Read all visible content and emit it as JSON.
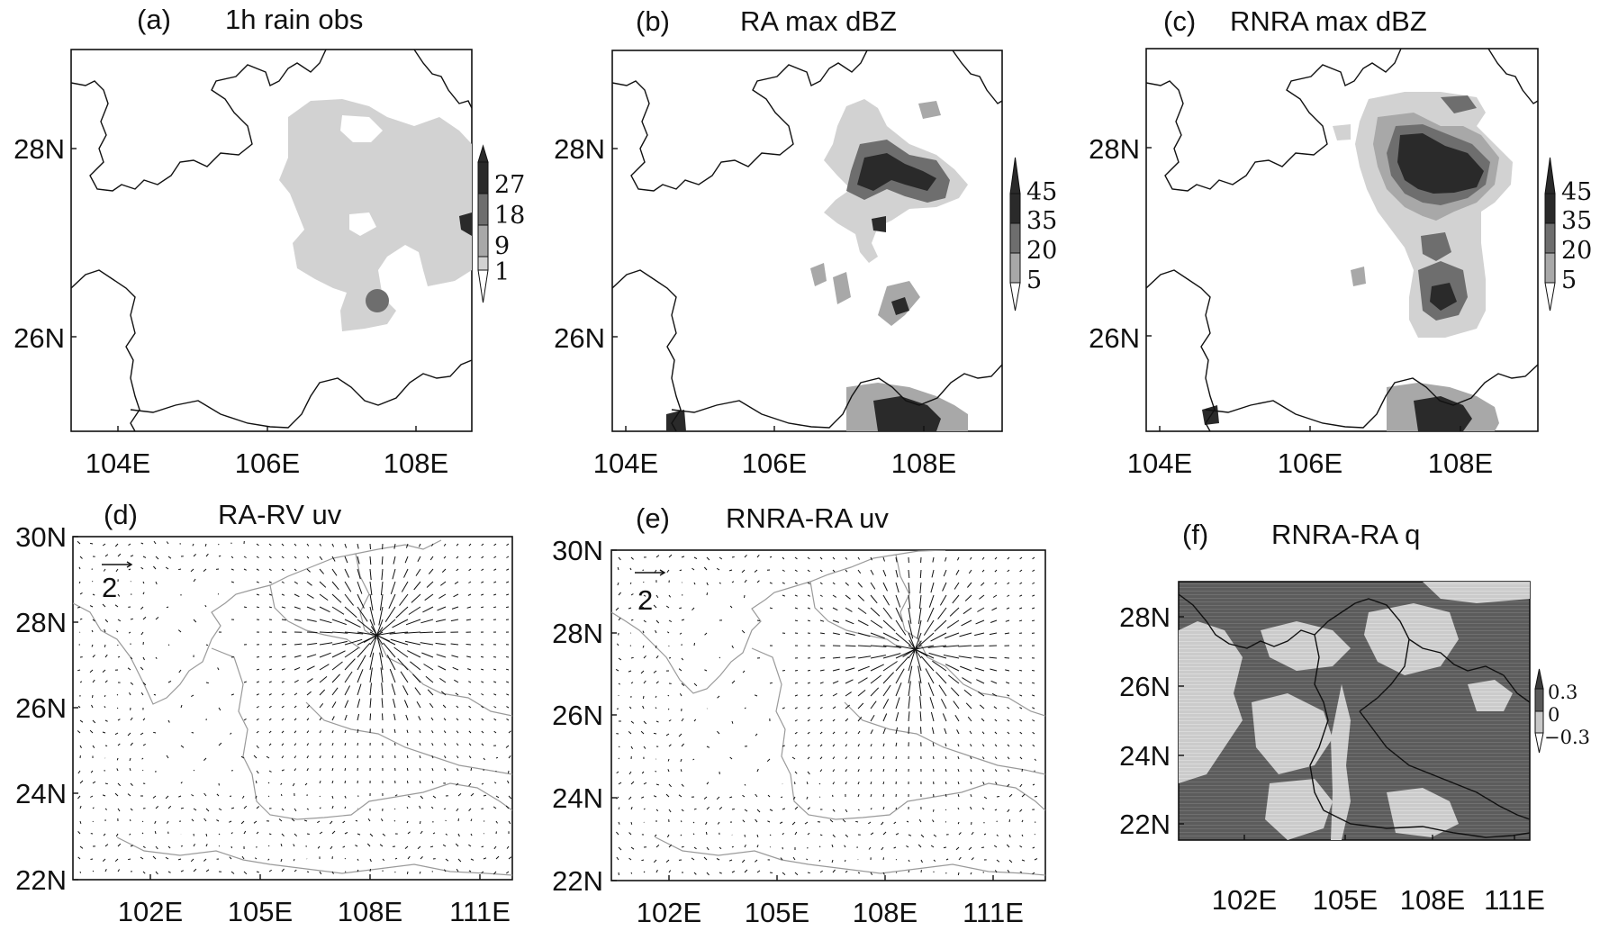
{
  "panels": [
    {
      "id": "a",
      "letter": "(a)",
      "title": "1h rain obs",
      "x_ticks": [
        "104E",
        "106E",
        "108E"
      ],
      "y_ticks": [
        "28N",
        "26N"
      ],
      "colorbar": {
        "levels": [
          "27",
          "18",
          "9",
          "1"
        ],
        "colors": [
          "#2a2a2a",
          "#6e6e6e",
          "#a8a8a8",
          "#d2d2d2"
        ]
      }
    },
    {
      "id": "b",
      "letter": "(b)",
      "title": "RA max dBZ",
      "x_ticks": [
        "104E",
        "106E",
        "108E"
      ],
      "y_ticks": [
        "28N",
        "26N"
      ],
      "colorbar": {
        "levels": [
          "45",
          "35",
          "20",
          "5"
        ],
        "colors": [
          "#2a2a2a",
          "#6e6e6e",
          "#a8a8a8",
          "#d2d2d2"
        ]
      }
    },
    {
      "id": "c",
      "letter": "(c)",
      "title": "RNRA max dBZ",
      "x_ticks": [
        "104E",
        "106E",
        "108E"
      ],
      "y_ticks": [
        "28N",
        "26N"
      ],
      "colorbar": {
        "levels": [
          "45",
          "35",
          "20",
          "5"
        ],
        "colors": [
          "#2a2a2a",
          "#6e6e6e",
          "#a8a8a8",
          "#d2d2d2"
        ]
      }
    },
    {
      "id": "d",
      "letter": "(d)",
      "title": "RA-RV uv",
      "x_ticks": [
        "102E",
        "105E",
        "108E",
        "111E"
      ],
      "y_ticks": [
        "30N",
        "28N",
        "26N",
        "24N",
        "22N"
      ],
      "ref_vector": "2"
    },
    {
      "id": "e",
      "letter": "(e)",
      "title": "RNRA-RA uv",
      "x_ticks": [
        "102E",
        "105E",
        "108E",
        "111E"
      ],
      "y_ticks": [
        "30N",
        "28N",
        "26N",
        "24N",
        "22N"
      ],
      "ref_vector": "2"
    },
    {
      "id": "f",
      "letter": "(f)",
      "title": "RNRA-RA q",
      "x_ticks": [
        "102E",
        "105E",
        "108E",
        "111E"
      ],
      "y_ticks": [
        "28N",
        "26N",
        "24N",
        "22N"
      ],
      "colorbar": {
        "levels": [
          "0.3",
          "0",
          "−0.3"
        ],
        "colors": [
          "#5a5a5a",
          "#c8c8c8"
        ]
      }
    }
  ],
  "chart_data": [
    {
      "type": "heatmap",
      "panel": "a",
      "title": "1h rain obs",
      "x_ticks": [
        104,
        106,
        108
      ],
      "y_ticks": [
        28,
        26
      ],
      "xlim": [
        103.0,
        109.0
      ],
      "ylim": [
        24.9,
        28.9
      ],
      "levels": [
        1,
        9,
        18,
        27
      ],
      "regions": [
        {
          "level": 1,
          "lon": [
            106.6,
            109.0
          ],
          "lat": [
            25.9,
            28.5
          ]
        },
        {
          "level": 9,
          "lon": [
            107.6,
            107.8
          ],
          "lat": [
            26.2,
            26.5
          ]
        },
        {
          "level": 18,
          "lon": [
            108.8,
            109.0
          ],
          "lat": [
            27.1,
            27.4
          ]
        }
      ]
    },
    {
      "type": "heatmap",
      "panel": "b",
      "title": "RA max dBZ",
      "x_ticks": [
        104,
        106,
        108
      ],
      "y_ticks": [
        28,
        26
      ],
      "xlim": [
        103.0,
        109.0
      ],
      "ylim": [
        24.9,
        28.9
      ],
      "levels": [
        5,
        20,
        35,
        45
      ],
      "regions": [
        {
          "level": 5,
          "lon": [
            106.8,
            108.7
          ],
          "lat": [
            27.2,
            28.5
          ]
        },
        {
          "level": 35,
          "lon": [
            107.2,
            108.2
          ],
          "lat": [
            27.3,
            28.0
          ]
        },
        {
          "level": 45,
          "lon": [
            107.1,
            108.0
          ],
          "lat": [
            27.4,
            27.9
          ]
        },
        {
          "level": 20,
          "lon": [
            107.1,
            107.8
          ],
          "lat": [
            25.9,
            26.8
          ]
        },
        {
          "level": 35,
          "lon": [
            107.3,
            108.3
          ],
          "lat": [
            24.9,
            25.4
          ]
        }
      ]
    },
    {
      "type": "heatmap",
      "panel": "c",
      "title": "RNRA max dBZ",
      "x_ticks": [
        104,
        106,
        108
      ],
      "y_ticks": [
        28,
        26
      ],
      "xlim": [
        103.0,
        109.0
      ],
      "ylim": [
        24.9,
        28.9
      ],
      "levels": [
        5,
        20,
        35,
        45
      ],
      "regions": [
        {
          "level": 5,
          "lon": [
            106.9,
            108.7
          ],
          "lat": [
            25.9,
            28.6
          ]
        },
        {
          "level": 20,
          "lon": [
            107.0,
            108.6
          ],
          "lat": [
            26.6,
            28.4
          ]
        },
        {
          "level": 35,
          "lon": [
            107.1,
            108.4
          ],
          "lat": [
            27.1,
            28.2
          ]
        },
        {
          "level": 45,
          "lon": [
            107.2,
            108.4
          ],
          "lat": [
            27.2,
            28.0
          ]
        },
        {
          "level": 35,
          "lon": [
            107.2,
            107.7
          ],
          "lat": [
            26.1,
            26.7
          ]
        },
        {
          "level": 35,
          "lon": [
            107.3,
            108.2
          ],
          "lat": [
            24.9,
            25.4
          ]
        }
      ]
    },
    {
      "type": "scatter",
      "panel": "d",
      "title": "RA-RV uv",
      "x_ticks": [
        102,
        105,
        108,
        111
      ],
      "y_ticks": [
        30,
        28,
        26,
        24,
        22
      ],
      "xlim": [
        99.5,
        111.5
      ],
      "ylim": [
        22.0,
        30.0
      ],
      "reference_vector": 2,
      "convergence_center": {
        "lon": 107.8,
        "lat": 27.7
      }
    },
    {
      "type": "scatter",
      "panel": "e",
      "title": "RNRA-RA uv",
      "x_ticks": [
        102,
        105,
        108,
        111
      ],
      "y_ticks": [
        30,
        28,
        26,
        24,
        22
      ],
      "xlim": [
        99.5,
        111.5
      ],
      "ylim": [
        22.0,
        30.0
      ],
      "reference_vector": 2,
      "convergence_center": {
        "lon": 107.9,
        "lat": 27.6
      }
    },
    {
      "type": "heatmap",
      "panel": "f",
      "title": "RNRA-RA q",
      "x_ticks": [
        102,
        105,
        108,
        111
      ],
      "y_ticks": [
        28,
        26,
        24,
        22
      ],
      "xlim": [
        100.0,
        112.0
      ],
      "ylim": [
        21.0,
        29.0
      ],
      "levels": [
        -0.3,
        0,
        0.3
      ]
    }
  ]
}
